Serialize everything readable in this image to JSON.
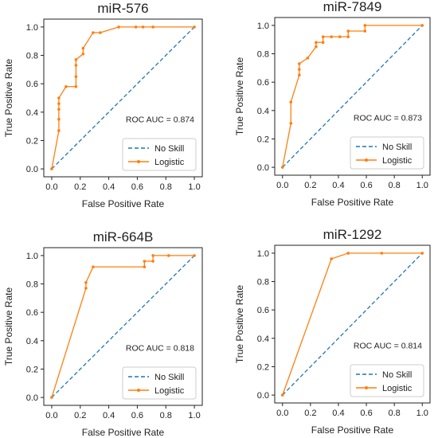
{
  "charts": [
    {
      "type": "line",
      "title": "miR-576",
      "xlabel": "False Positive Rate",
      "ylabel": "True Positive Rate",
      "xlim": [
        0,
        1
      ],
      "ylim": [
        0,
        1
      ],
      "xticks": [
        "0.0",
        "0.2",
        "0.4",
        "0.6",
        "0.8",
        "1.0"
      ],
      "yticks": [
        "0.0",
        "0.2",
        "0.4",
        "0.6",
        "0.8",
        "1.0"
      ],
      "annotation": "ROC AUC = 0.874",
      "legend_position": "lower-right",
      "series": [
        {
          "name": "No Skill",
          "color": "#1f77b4",
          "style": "dashed",
          "x": [
            0,
            1
          ],
          "y": [
            0,
            1
          ]
        },
        {
          "name": "Logistic",
          "color": "#ff7f0e",
          "style": "solid-markers",
          "x": [
            0,
            0.05,
            0.05,
            0.05,
            0.05,
            0.05,
            0.1,
            0.17,
            0.17,
            0.17,
            0.17,
            0.22,
            0.22,
            0.29,
            0.34,
            0.47,
            0.59,
            0.64,
            0.71,
            1.0
          ],
          "y": [
            0,
            0.27,
            0.35,
            0.42,
            0.46,
            0.5,
            0.58,
            0.58,
            0.65,
            0.73,
            0.77,
            0.81,
            0.85,
            0.96,
            0.96,
            1.0,
            1.0,
            1.0,
            1.0,
            1.0
          ]
        }
      ]
    },
    {
      "type": "line",
      "title": "miR-7849",
      "xlabel": "False Positive Rate",
      "ylabel": "True Positive Rate",
      "xlim": [
        0,
        1
      ],
      "ylim": [
        0,
        1
      ],
      "xticks": [
        "0.0",
        "0.2",
        "0.4",
        "0.6",
        "0.8",
        "1.0"
      ],
      "yticks": [
        "0.0",
        "0.2",
        "0.4",
        "0.6",
        "0.8",
        "1.0"
      ],
      "annotation": "ROC AUC = 0.873",
      "legend_position": "lower-right",
      "series": [
        {
          "name": "No Skill",
          "color": "#1f77b4",
          "style": "dashed",
          "x": [
            0,
            1
          ],
          "y": [
            0,
            1
          ]
        },
        {
          "name": "Logistic",
          "color": "#ff7f0e",
          "style": "solid-markers",
          "x": [
            0,
            0.06,
            0.06,
            0.12,
            0.12,
            0.12,
            0.18,
            0.24,
            0.24,
            0.29,
            0.29,
            0.35,
            0.41,
            0.47,
            0.47,
            0.59,
            0.59,
            1.0
          ],
          "y": [
            0,
            0.31,
            0.46,
            0.65,
            0.69,
            0.73,
            0.77,
            0.85,
            0.88,
            0.88,
            0.92,
            0.92,
            0.92,
            0.92,
            0.96,
            0.96,
            1.0,
            1.0
          ]
        }
      ]
    },
    {
      "type": "line",
      "title": "miR-664B",
      "xlabel": "False Positive Rate",
      "ylabel": "True Positive Rate",
      "xlim": [
        0,
        1
      ],
      "ylim": [
        0,
        1
      ],
      "xticks": [
        "0.0",
        "0.2",
        "0.4",
        "0.6",
        "0.8",
        "1.0"
      ],
      "yticks": [
        "0.0",
        "0.2",
        "0.4",
        "0.6",
        "0.8",
        "1.0"
      ],
      "annotation": "ROC AUC = 0.818",
      "legend_position": "lower-right",
      "series": [
        {
          "name": "No Skill",
          "color": "#1f77b4",
          "style": "dashed",
          "x": [
            0,
            1
          ],
          "y": [
            0,
            1
          ]
        },
        {
          "name": "Logistic",
          "color": "#ff7f0e",
          "style": "solid-markers",
          "x": [
            0,
            0.24,
            0.24,
            0.29,
            0.65,
            0.65,
            0.71,
            0.71,
            0.82,
            1.0
          ],
          "y": [
            0,
            0.77,
            0.81,
            0.92,
            0.92,
            0.96,
            0.96,
            1.0,
            1.0,
            1.0
          ]
        }
      ]
    },
    {
      "type": "line",
      "title": "miR-1292",
      "xlabel": "False Positive Rate",
      "ylabel": "True Positive Rate",
      "xlim": [
        0,
        1
      ],
      "ylim": [
        0,
        1
      ],
      "xticks": [
        "0.0",
        "0.2",
        "0.4",
        "0.6",
        "0.8",
        "1.0"
      ],
      "yticks": [
        "0.0",
        "0.2",
        "0.4",
        "0.6",
        "0.8",
        "1.0"
      ],
      "annotation": "ROC AUC = 0.814",
      "legend_position": "lower-right",
      "series": [
        {
          "name": "No Skill",
          "color": "#1f77b4",
          "style": "dashed",
          "x": [
            0,
            1
          ],
          "y": [
            0,
            1
          ]
        },
        {
          "name": "Logistic",
          "color": "#ff7f0e",
          "style": "solid-markers",
          "x": [
            0,
            0.35,
            0.47,
            0.71,
            1.0
          ],
          "y": [
            0,
            0.96,
            1.0,
            1.0,
            1.0
          ]
        }
      ]
    }
  ],
  "chart_data": [
    {
      "type": "line",
      "title": "miR-576",
      "xlabel": "False Positive Rate",
      "ylabel": "True Positive Rate",
      "xlim": [
        0,
        1
      ],
      "ylim": [
        0,
        1
      ],
      "annotation": "ROC AUC = 0.874",
      "series": [
        {
          "name": "No Skill",
          "x": [
            0,
            1
          ],
          "y": [
            0,
            1
          ]
        },
        {
          "name": "Logistic",
          "x": [
            0,
            0.05,
            0.05,
            0.05,
            0.05,
            0.05,
            0.1,
            0.17,
            0.17,
            0.17,
            0.17,
            0.22,
            0.22,
            0.29,
            0.34,
            0.47,
            0.59,
            0.64,
            0.71,
            1.0
          ],
          "y": [
            0,
            0.27,
            0.35,
            0.42,
            0.46,
            0.5,
            0.58,
            0.58,
            0.65,
            0.73,
            0.77,
            0.81,
            0.85,
            0.96,
            0.96,
            1.0,
            1.0,
            1.0,
            1.0,
            1.0
          ]
        }
      ]
    },
    {
      "type": "line",
      "title": "miR-7849",
      "xlabel": "False Positive Rate",
      "ylabel": "True Positive Rate",
      "xlim": [
        0,
        1
      ],
      "ylim": [
        0,
        1
      ],
      "annotation": "ROC AUC = 0.873",
      "series": [
        {
          "name": "No Skill",
          "x": [
            0,
            1
          ],
          "y": [
            0,
            1
          ]
        },
        {
          "name": "Logistic",
          "x": [
            0,
            0.06,
            0.06,
            0.12,
            0.12,
            0.12,
            0.18,
            0.24,
            0.24,
            0.29,
            0.29,
            0.35,
            0.41,
            0.47,
            0.47,
            0.59,
            0.59,
            1.0
          ],
          "y": [
            0,
            0.31,
            0.46,
            0.65,
            0.69,
            0.73,
            0.77,
            0.85,
            0.88,
            0.88,
            0.92,
            0.92,
            0.92,
            0.92,
            0.96,
            0.96,
            1.0,
            1.0
          ]
        }
      ]
    },
    {
      "type": "line",
      "title": "miR-664B",
      "xlabel": "False Positive Rate",
      "ylabel": "True Positive Rate",
      "xlim": [
        0,
        1
      ],
      "ylim": [
        0,
        1
      ],
      "annotation": "ROC AUC = 0.818",
      "series": [
        {
          "name": "No Skill",
          "x": [
            0,
            1
          ],
          "y": [
            0,
            1
          ]
        },
        {
          "name": "Logistic",
          "x": [
            0,
            0.24,
            0.24,
            0.29,
            0.65,
            0.65,
            0.71,
            0.71,
            0.82,
            1.0
          ],
          "y": [
            0,
            0.77,
            0.81,
            0.92,
            0.92,
            0.96,
            0.96,
            1.0,
            1.0,
            1.0
          ]
        }
      ]
    },
    {
      "type": "line",
      "title": "miR-1292",
      "xlabel": "False Positive Rate",
      "ylabel": "True Positive Rate",
      "xlim": [
        0,
        1
      ],
      "ylim": [
        0,
        1
      ],
      "annotation": "ROC AUC = 0.814",
      "series": [
        {
          "name": "No Skill",
          "x": [
            0,
            1
          ],
          "y": [
            0,
            1
          ]
        },
        {
          "name": "Logistic",
          "x": [
            0,
            0.35,
            0.47,
            0.71,
            1.0
          ],
          "y": [
            0,
            0.96,
            1.0,
            1.0,
            1.0
          ]
        }
      ]
    }
  ]
}
